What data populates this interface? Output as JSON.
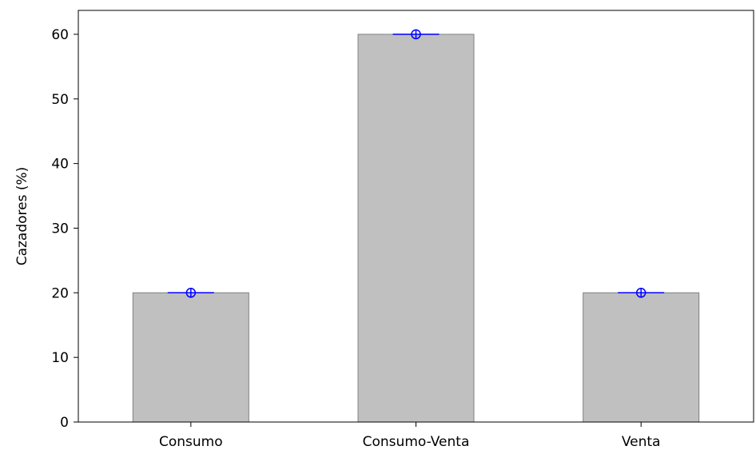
{
  "chart_data": {
    "type": "bar",
    "categories": [
      "Consumo",
      "Consumo-Venta",
      "Venta"
    ],
    "values": [
      20,
      60,
      20
    ],
    "error_markers": [
      20,
      60,
      20
    ],
    "xlabel": "",
    "ylabel": "Cazadores (%)",
    "ylim": [
      0,
      63.7
    ],
    "yticks": [
      "0",
      "10",
      "20",
      "30",
      "40",
      "50",
      "60"
    ],
    "grid": false,
    "bar_color": "#c0c0c0",
    "bar_edge_color": "#808080",
    "marker_color": "#0000ff"
  }
}
